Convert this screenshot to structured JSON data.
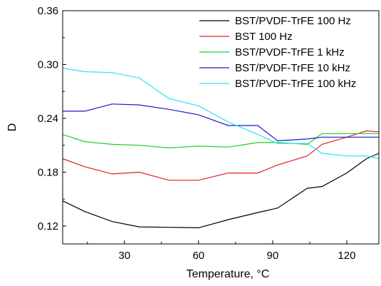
{
  "chart_data": {
    "type": "line",
    "xlabel": "Temperature, °C",
    "ylabel": "D",
    "xlim": [
      5,
      133
    ],
    "ylim": [
      0.1,
      0.36
    ],
    "xticks": [
      30,
      60,
      90,
      120
    ],
    "yticks": [
      0.12,
      0.18,
      0.24,
      0.3,
      0.36
    ],
    "xtick_labels": [
      "30",
      "60",
      "90",
      "120"
    ],
    "ytick_labels": [
      "0.12",
      "0.18",
      "0.24",
      "0.30",
      "0.36"
    ],
    "grid": false,
    "legend_position": "top-right",
    "series": [
      {
        "name": "BST/PVDF-TrFE 100 Hz",
        "color": "#000000",
        "x": [
          5,
          14,
          25,
          36,
          48,
          60,
          72,
          84,
          92,
          104,
          110,
          120,
          128,
          133
        ],
        "y": [
          0.148,
          0.136,
          0.125,
          0.119,
          0.1185,
          0.118,
          0.127,
          0.135,
          0.14,
          0.162,
          0.164,
          0.179,
          0.195,
          0.201
        ]
      },
      {
        "name": "BST 100 Hz",
        "color": "#e02020",
        "x": [
          5,
          14,
          25,
          36,
          48,
          60,
          72,
          84,
          92,
          104,
          110,
          120,
          128,
          133
        ],
        "y": [
          0.195,
          0.186,
          0.178,
          0.18,
          0.171,
          0.171,
          0.179,
          0.179,
          0.188,
          0.198,
          0.211,
          0.219,
          0.226,
          0.225
        ]
      },
      {
        "name": "BST/PVDF-TrFE 1 kHz",
        "color": "#22cc22",
        "x": [
          5,
          14,
          25,
          36,
          48,
          60,
          72,
          84,
          92,
          104,
          110,
          120,
          128,
          133
        ],
        "y": [
          0.222,
          0.214,
          0.211,
          0.21,
          0.207,
          0.209,
          0.208,
          0.213,
          0.213,
          0.211,
          0.223,
          0.223,
          0.223,
          0.223
        ]
      },
      {
        "name": "BST/PVDF-TrFE 10 kHz",
        "color": "#1a1acc",
        "x": [
          5,
          14,
          25,
          36,
          48,
          60,
          72,
          84,
          92,
          104,
          110,
          120,
          128,
          133
        ],
        "y": [
          0.248,
          0.248,
          0.256,
          0.255,
          0.25,
          0.244,
          0.232,
          0.232,
          0.215,
          0.217,
          0.219,
          0.219,
          0.219,
          0.219
        ]
      },
      {
        "name": "BST/PVDF-TrFE 100 kHz",
        "color": "#22e6f0",
        "x": [
          5,
          14,
          25,
          36,
          48,
          60,
          72,
          84,
          92,
          104,
          110,
          120,
          128,
          133
        ],
        "y": [
          0.296,
          0.292,
          0.291,
          0.285,
          0.262,
          0.254,
          0.236,
          0.222,
          0.212,
          0.212,
          0.201,
          0.198,
          0.198,
          0.195
        ]
      }
    ]
  }
}
